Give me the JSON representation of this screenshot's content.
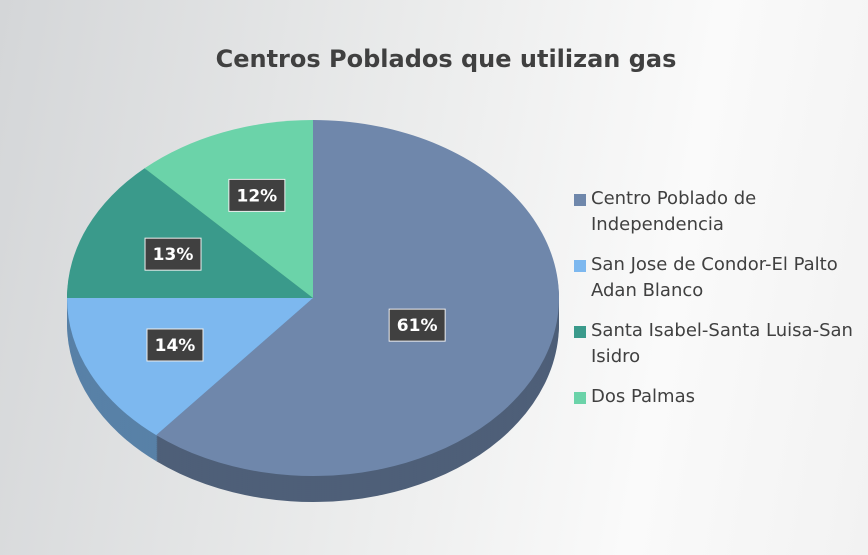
{
  "chart_data": {
    "type": "pie",
    "title": "Centros Poblados que utilizan gas",
    "categories": [
      "Centro Poblado de Independencia",
      "San Jose de Condor-El Palto Adan Blanco",
      "Santa Isabel-Santa Luisa-San Isidro",
      "Dos Palmas"
    ],
    "values": [
      61,
      14,
      13,
      12
    ],
    "value_labels": [
      "61%",
      "14%",
      "13%",
      "12%"
    ],
    "colors": [
      "#6f87ab",
      "#7db8ef",
      "#3a9a8b",
      "#6bd3a9"
    ],
    "legend": "right"
  }
}
